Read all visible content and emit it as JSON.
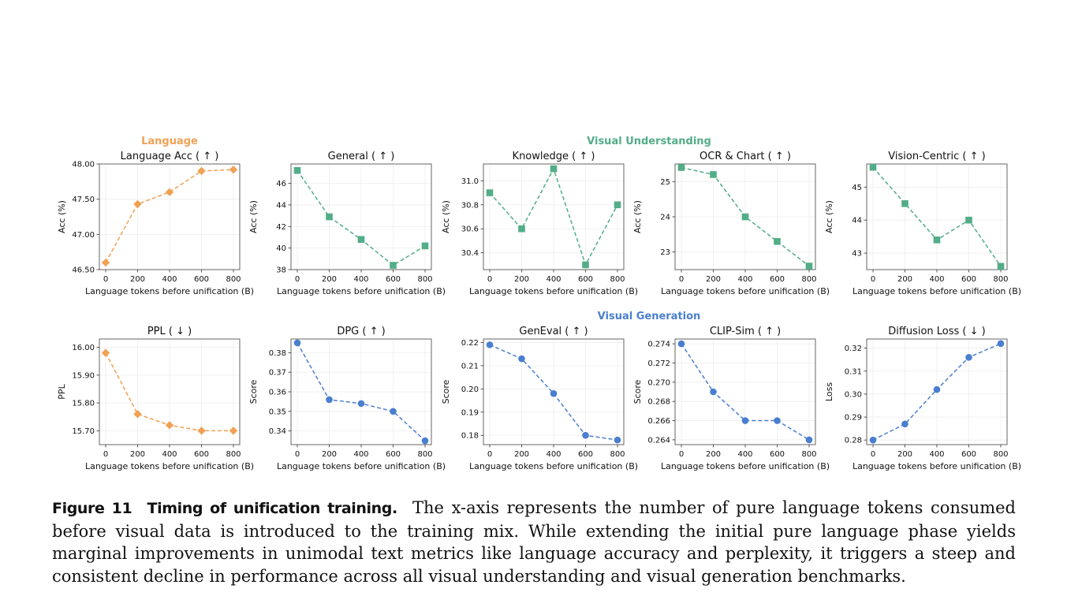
{
  "section_headers": [
    {
      "text": "Language",
      "color": "#f0a154"
    },
    {
      "text": "Visual Understanding",
      "color": "#52ad88"
    },
    {
      "text": "Visual Generation",
      "color": "#4a7fcf"
    }
  ],
  "colors": {
    "language": "#f0a154",
    "understanding": "#52ad88",
    "generation": "#4a7fcf"
  },
  "caption": {
    "label": "Figure 11",
    "title": "Timing of unification training.",
    "body": "The x-axis represents the number of pure language tokens consumed before visual data is introduced to the training mix. While extending the initial pure language phase yields marginal improvements in unimodal text metrics like language accuracy and perplexity, it triggers a steep and consistent decline in performance across all visual understanding and visual generation benchmarks."
  },
  "chart_data": [
    {
      "type": "line",
      "title": "Language Acc ( ↑ )",
      "xlabel": "Language tokens before unification (B)",
      "ylabel": "Acc (%)",
      "x": [
        0,
        200,
        400,
        600,
        800
      ],
      "xticks": [
        "0",
        "200",
        "400",
        "600",
        "800"
      ],
      "values": [
        46.6,
        47.43,
        47.6,
        47.9,
        47.92
      ],
      "ylim": [
        46.5,
        48.0
      ],
      "yticks": [
        46.5,
        47.0,
        47.5,
        48.0
      ],
      "ytick_labels": [
        "46.50",
        "47.00",
        "47.50",
        "48.00"
      ],
      "marker": "diamond",
      "color": "#f0a154",
      "grid": true
    },
    {
      "type": "line",
      "title": "General ( ↑ )",
      "xlabel": "Language tokens before unification (B)",
      "ylabel": "Acc (%)",
      "x": [
        0,
        200,
        400,
        600,
        800
      ],
      "xticks": [
        "0",
        "200",
        "400",
        "600",
        "800"
      ],
      "values": [
        47.2,
        42.9,
        40.8,
        38.4,
        40.2
      ],
      "ylim": [
        38,
        47.8
      ],
      "yticks": [
        38,
        40,
        42,
        44,
        46
      ],
      "ytick_labels": [
        "38",
        "40",
        "42",
        "44",
        "46"
      ],
      "marker": "square",
      "color": "#52ad88",
      "grid": true
    },
    {
      "type": "line",
      "title": "Knowledge ( ↑ )",
      "xlabel": "Language tokens before unification (B)",
      "ylabel": "Acc (%)",
      "x": [
        0,
        200,
        400,
        600,
        800
      ],
      "xticks": [
        "0",
        "200",
        "400",
        "600",
        "800"
      ],
      "values": [
        30.9,
        30.6,
        31.1,
        30.3,
        30.8
      ],
      "ylim": [
        30.26,
        31.14
      ],
      "yticks": [
        30.4,
        30.6,
        30.8,
        31.0
      ],
      "ytick_labels": [
        "30.4",
        "30.6",
        "30.8",
        "31.0"
      ],
      "marker": "square",
      "color": "#52ad88",
      "grid": true
    },
    {
      "type": "line",
      "title": "OCR & Chart ( ↑ )",
      "xlabel": "Language tokens before unification (B)",
      "ylabel": "Acc (%)",
      "x": [
        0,
        200,
        400,
        600,
        800
      ],
      "xticks": [
        "0",
        "200",
        "400",
        "600",
        "800"
      ],
      "values": [
        25.4,
        25.2,
        24.0,
        23.3,
        22.6
      ],
      "ylim": [
        22.5,
        25.5
      ],
      "yticks": [
        23,
        24,
        25
      ],
      "ytick_labels": [
        "23",
        "24",
        "25"
      ],
      "marker": "square",
      "color": "#52ad88",
      "grid": true
    },
    {
      "type": "line",
      "title": "Vision-Centric ( ↑ )",
      "xlabel": "Language tokens before unification (B)",
      "ylabel": "Acc (%)",
      "x": [
        0,
        200,
        400,
        600,
        800
      ],
      "xticks": [
        "0",
        "200",
        "400",
        "600",
        "800"
      ],
      "values": [
        45.6,
        44.5,
        43.4,
        44.0,
        42.6
      ],
      "ylim": [
        42.5,
        45.7
      ],
      "yticks": [
        43,
        44,
        45
      ],
      "ytick_labels": [
        "43",
        "44",
        "45"
      ],
      "marker": "square",
      "color": "#52ad88",
      "grid": true
    },
    {
      "type": "line",
      "title": "PPL ( ↓ )",
      "xlabel": "Language tokens before unification (B)",
      "ylabel": "PPL",
      "x": [
        0,
        200,
        400,
        600,
        800
      ],
      "xticks": [
        "0",
        "200",
        "400",
        "600",
        "800"
      ],
      "values": [
        15.98,
        15.76,
        15.72,
        15.7,
        15.7
      ],
      "ylim": [
        15.65,
        16.03
      ],
      "yticks": [
        15.7,
        15.8,
        15.9,
        16.0
      ],
      "ytick_labels": [
        "15.70",
        "15.80",
        "15.90",
        "16.00"
      ],
      "marker": "diamond",
      "color": "#f0a154",
      "grid": true
    },
    {
      "type": "line",
      "title": "DPG ( ↑ )",
      "xlabel": "Language tokens before unification (B)",
      "ylabel": "Score",
      "x": [
        0,
        200,
        400,
        600,
        800
      ],
      "xticks": [
        "0",
        "200",
        "400",
        "600",
        "800"
      ],
      "values": [
        0.385,
        0.356,
        0.354,
        0.35,
        0.335
      ],
      "ylim": [
        0.333,
        0.387
      ],
      "yticks": [
        0.34,
        0.35,
        0.36,
        0.37,
        0.38
      ],
      "ytick_labels": [
        "0.34",
        "0.35",
        "0.36",
        "0.37",
        "0.38"
      ],
      "marker": "circle",
      "color": "#4a7fcf",
      "grid": true
    },
    {
      "type": "line",
      "title": "GenEval ( ↑ )",
      "xlabel": "Language tokens before unification (B)",
      "ylabel": "Score",
      "x": [
        0,
        200,
        400,
        600,
        800
      ],
      "xticks": [
        "0",
        "200",
        "400",
        "600",
        "800"
      ],
      "values": [
        0.219,
        0.213,
        0.198,
        0.18,
        0.178
      ],
      "ylim": [
        0.176,
        0.2215
      ],
      "yticks": [
        0.18,
        0.19,
        0.2,
        0.21,
        0.22
      ],
      "ytick_labels": [
        "0.18",
        "0.19",
        "0.20",
        "0.21",
        "0.22"
      ],
      "marker": "circle",
      "color": "#4a7fcf",
      "grid": true
    },
    {
      "type": "line",
      "title": "CLIP-Sim ( ↑ )",
      "xlabel": "Language tokens before unification (B)",
      "ylabel": "Score",
      "x": [
        0,
        200,
        400,
        600,
        800
      ],
      "xticks": [
        "0",
        "200",
        "400",
        "600",
        "800"
      ],
      "values": [
        0.274,
        0.269,
        0.266,
        0.266,
        0.264
      ],
      "ylim": [
        0.2635,
        0.2745
      ],
      "yticks": [
        0.264,
        0.266,
        0.268,
        0.27,
        0.272,
        0.274
      ],
      "ytick_labels": [
        "0.264",
        "0.266",
        "0.268",
        "0.270",
        "0.272",
        "0.274"
      ],
      "marker": "circle",
      "color": "#4a7fcf",
      "grid": true
    },
    {
      "type": "line",
      "title": "Diffusion Loss ( ↓ )",
      "xlabel": "Language tokens before unification (B)",
      "ylabel": "Loss",
      "x": [
        0,
        200,
        400,
        600,
        800
      ],
      "xticks": [
        "0",
        "200",
        "400",
        "600",
        "800"
      ],
      "values": [
        0.28,
        0.287,
        0.302,
        0.316,
        0.322
      ],
      "ylim": [
        0.278,
        0.324
      ],
      "yticks": [
        0.28,
        0.29,
        0.3,
        0.31,
        0.32
      ],
      "ytick_labels": [
        "0.28",
        "0.29",
        "0.30",
        "0.31",
        "0.32"
      ],
      "marker": "circle",
      "color": "#4a7fcf",
      "grid": true
    }
  ]
}
